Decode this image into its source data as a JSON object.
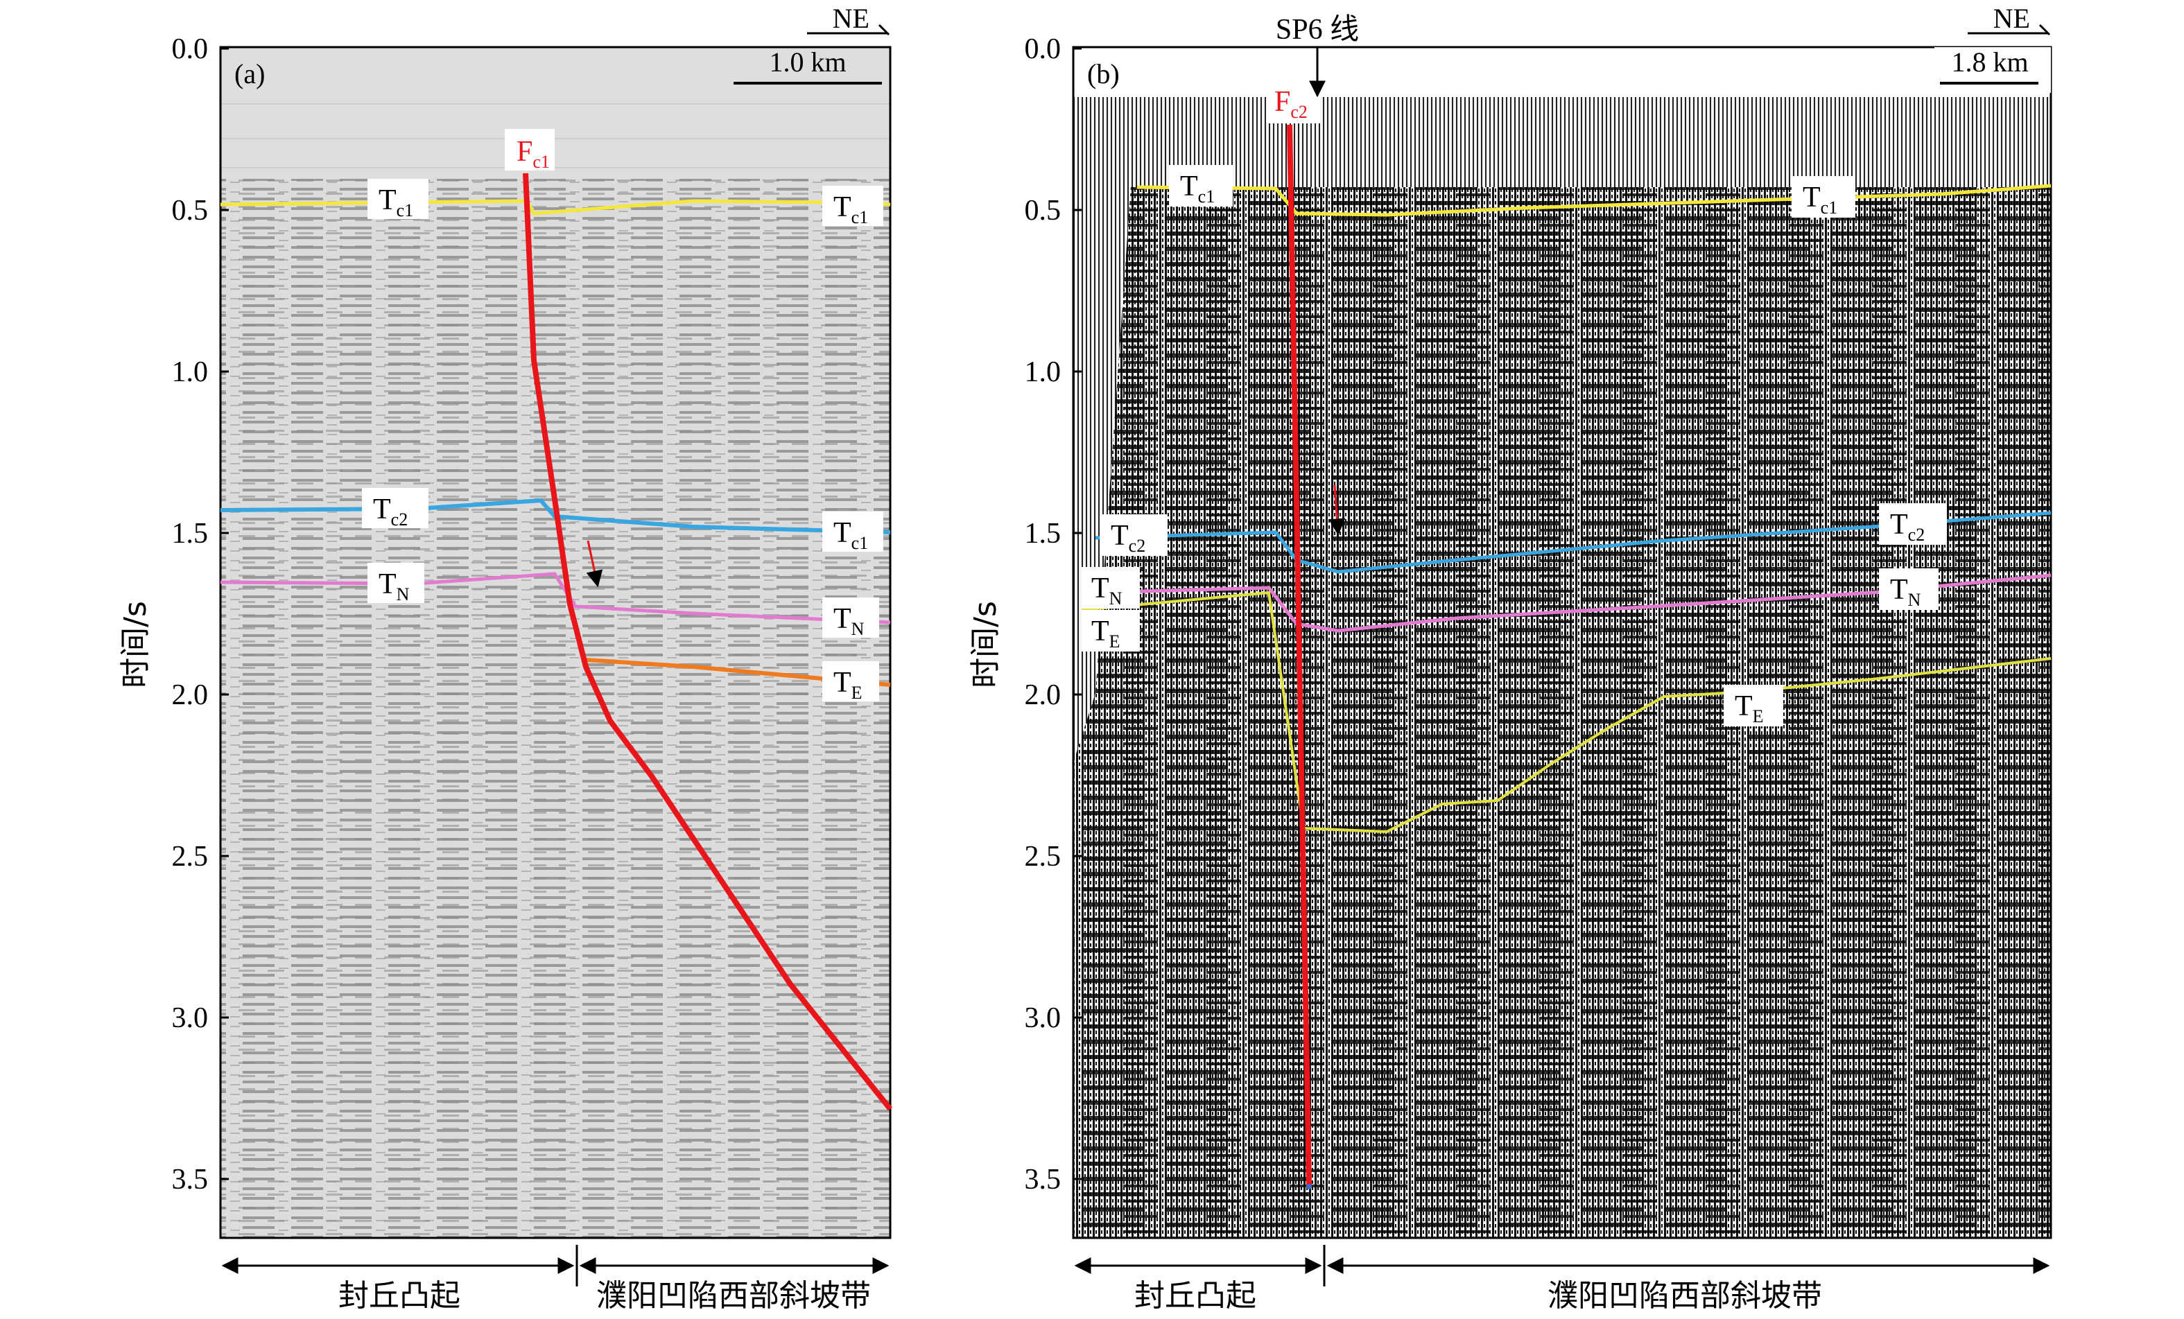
{
  "axis": {
    "ylabel": "时间/s",
    "ticks": [
      "0.0",
      "0.5",
      "1.0",
      "1.5",
      "2.0",
      "2.5",
      "3.0",
      "3.5"
    ],
    "tick_values": [
      0.0,
      0.5,
      1.0,
      1.5,
      2.0,
      2.5,
      3.0,
      3.5
    ]
  },
  "direction": "NE",
  "panel_a": {
    "tag": "(a)",
    "scale": "1.0 km",
    "fault": {
      "main": "F",
      "sub": "c1"
    },
    "horizon_labels": [
      {
        "main": "T",
        "sub": "c1"
      },
      {
        "main": "T",
        "sub": "c1"
      },
      {
        "main": "T",
        "sub": "c2"
      },
      {
        "main": "T",
        "sub": "c1"
      },
      {
        "main": "T",
        "sub": "N"
      },
      {
        "main": "T",
        "sub": "N"
      },
      {
        "main": "T",
        "sub": "E"
      }
    ],
    "zones": [
      "封丘凸起",
      "濮阳凹陷西部斜坡带"
    ]
  },
  "panel_b": {
    "tag": "(b)",
    "scale": "1.8 km",
    "line_label": "SP6 线",
    "fault": {
      "main": "F",
      "sub": "c2"
    },
    "horizon_labels": [
      {
        "main": "T",
        "sub": "c1"
      },
      {
        "main": "T",
        "sub": "c1"
      },
      {
        "main": "T",
        "sub": "c2"
      },
      {
        "main": "T",
        "sub": "c2"
      },
      {
        "main": "T",
        "sub": "N"
      },
      {
        "main": "T",
        "sub": "N"
      },
      {
        "main": "T",
        "sub": "E"
      },
      {
        "main": "T",
        "sub": "E"
      }
    ],
    "zones": [
      "封丘凸起",
      "濮阳凹陷西部斜坡带"
    ]
  },
  "colors": {
    "fault": "#e8161b",
    "tc1": "#f4e73c",
    "tc2": "#3aa6e0",
    "tn": "#e27bd0",
    "te_a": "#f07a20",
    "te_b": "#e0e040",
    "seis_a_bg": "#d9d9d9",
    "seis_b_bg": "#1a1a1a"
  }
}
